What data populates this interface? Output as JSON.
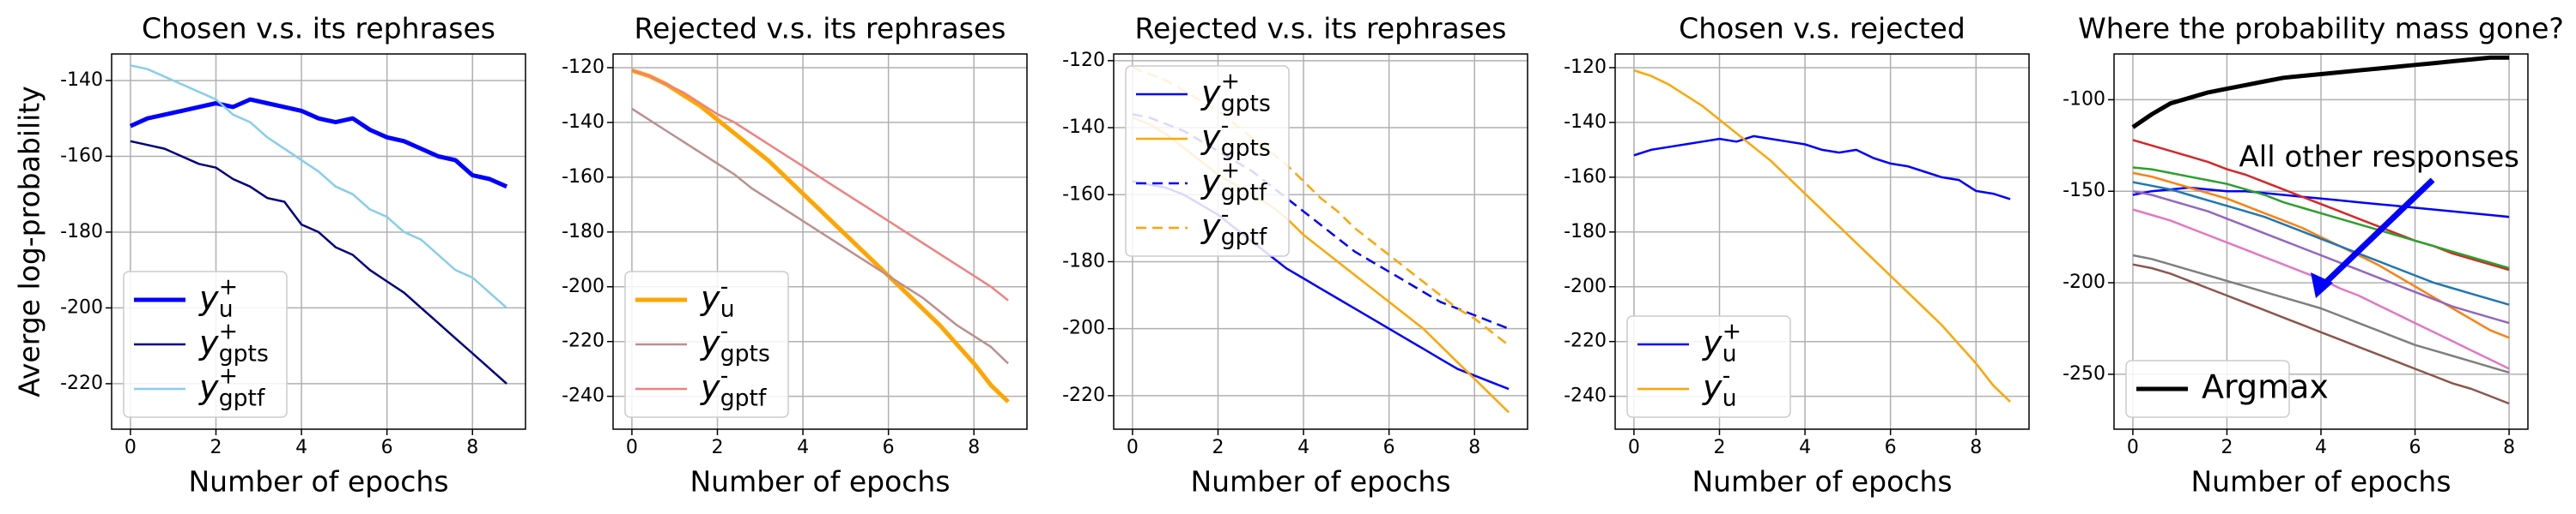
{
  "chart_data": [
    {
      "type": "line",
      "title": "Chosen v.s. its rephrases",
      "xlabel": "Number of epochs",
      "ylabel": "Averge log-probability",
      "x": [
        0,
        0.4,
        0.8,
        1.2,
        1.6,
        2,
        2.4,
        2.8,
        3.2,
        3.6,
        4,
        4.4,
        4.8,
        5.2,
        5.6,
        6,
        6.4,
        6.8,
        7.2,
        7.6,
        8,
        8.4,
        8.8
      ],
      "xlim": [
        -0.44,
        9.24
      ],
      "xticks": [
        0,
        2,
        4,
        6,
        8
      ],
      "ylim": [
        -232,
        -133
      ],
      "yticks": [
        -220,
        -200,
        -180,
        -160,
        -140
      ],
      "grid": true,
      "legend": "lower left",
      "series": [
        {
          "name": "y_u^+",
          "color": "#0000ff",
          "linewidth": 5,
          "values": [
            -152,
            -150,
            -149,
            -148,
            -147,
            -146,
            -147,
            -145,
            -146,
            -147,
            -148,
            -150,
            -151,
            -150,
            -153,
            -155,
            -156,
            -158,
            -160,
            -161,
            -165,
            -166,
            -168
          ]
        },
        {
          "name": "y_gpts^+",
          "color": "#000080",
          "linewidth": 2.5,
          "values": [
            -156,
            -157,
            -158,
            -160,
            -162,
            -163,
            -166,
            -168,
            -171,
            -172,
            -178,
            -180,
            -184,
            -186,
            -190,
            -193,
            -196,
            -200,
            -204,
            -208,
            -212,
            -216,
            -220
          ]
        },
        {
          "name": "y_gptf^+",
          "color": "#87ceeb",
          "linewidth": 2.5,
          "values": [
            -136,
            -137,
            -139,
            -141,
            -143,
            -145,
            -149,
            -151,
            -155,
            -158,
            -161,
            -164,
            -168,
            -170,
            -174,
            -176,
            -180,
            -182,
            -186,
            -190,
            -192,
            -196,
            -200
          ]
        }
      ]
    },
    {
      "type": "line",
      "title": "Rejected v.s. its rephrases",
      "xlabel": "Number of epochs",
      "x": [
        0,
        0.4,
        0.8,
        1.2,
        1.6,
        2,
        2.4,
        2.8,
        3.2,
        3.6,
        4,
        4.4,
        4.8,
        5.2,
        5.6,
        6,
        6.4,
        6.8,
        7.2,
        7.6,
        8,
        8.4,
        8.8
      ],
      "xlim": [
        -0.44,
        9.24
      ],
      "xticks": [
        0,
        2,
        4,
        6,
        8
      ],
      "ylim": [
        -252,
        -115
      ],
      "yticks": [
        -240,
        -220,
        -200,
        -180,
        -160,
        -140,
        -120
      ],
      "grid": true,
      "legend": "lower left",
      "series": [
        {
          "name": "y_u^-",
          "color": "#ffa500",
          "linewidth": 5,
          "values": [
            -121,
            -123,
            -126,
            -130,
            -134,
            -139,
            -144,
            -149,
            -154,
            -160,
            -166,
            -172,
            -178,
            -184,
            -190,
            -196,
            -202,
            -208,
            -214,
            -221,
            -228,
            -236,
            -242
          ]
        },
        {
          "name": "y_gpts^-",
          "color": "#bc8f8f",
          "linewidth": 2.5,
          "values": [
            -135,
            -139,
            -143,
            -147,
            -151,
            -155,
            -159,
            -164,
            -168,
            -172,
            -176,
            -180,
            -184,
            -188,
            -192,
            -196,
            -200,
            -204,
            -209,
            -214,
            -218,
            -222,
            -228
          ]
        },
        {
          "name": "y_gptf^-",
          "color": "#f08080",
          "linewidth": 2.5,
          "values": [
            -121,
            -123,
            -126,
            -129,
            -133,
            -137,
            -140,
            -144,
            -148,
            -152,
            -156,
            -160,
            -164,
            -168,
            -172,
            -176,
            -180,
            -184,
            -188,
            -192,
            -196,
            -200,
            -205
          ]
        }
      ]
    },
    {
      "type": "line",
      "title": "Rejected v.s. its rephrases",
      "xlabel": "Number of epochs",
      "x": [
        0,
        0.4,
        0.8,
        1.2,
        1.6,
        2,
        2.4,
        2.8,
        3.2,
        3.6,
        4,
        4.4,
        4.8,
        5.2,
        5.6,
        6,
        6.4,
        6.8,
        7.2,
        7.6,
        8,
        8.4,
        8.8
      ],
      "xlim": [
        -0.44,
        9.24
      ],
      "xticks": [
        0,
        2,
        4,
        6,
        8
      ],
      "ylim": [
        -230,
        -118
      ],
      "yticks": [
        -220,
        -200,
        -180,
        -160,
        -140,
        -120
      ],
      "grid": true,
      "legend": "upper left",
      "series": [
        {
          "name": "y_gpts^+",
          "color": "#0000ff",
          "linewidth": 2.5,
          "linestyle": "solid",
          "values": [
            -156,
            -157,
            -158,
            -160,
            -163,
            -166,
            -170,
            -174,
            -178,
            -182,
            -185,
            -188,
            -191,
            -194,
            -197,
            -200,
            -203,
            -206,
            -209,
            -212,
            -214,
            -216,
            -218
          ]
        },
        {
          "name": "y_gpts^-",
          "color": "#ffa500",
          "linewidth": 2.5,
          "linestyle": "solid",
          "values": [
            -137,
            -139,
            -142,
            -146,
            -150,
            -154,
            -157,
            -160,
            -163,
            -167,
            -172,
            -176,
            -180,
            -184,
            -188,
            -192,
            -196,
            -200,
            -205,
            -210,
            -215,
            -220,
            -225
          ]
        },
        {
          "name": "y_gptf^+",
          "color": "#0000ff",
          "linewidth": 2.5,
          "linestyle": "dashed",
          "values": [
            -136,
            -137,
            -139,
            -141,
            -144,
            -147,
            -150,
            -153,
            -157,
            -161,
            -165,
            -169,
            -173,
            -177,
            -180,
            -183,
            -186,
            -189,
            -192,
            -194,
            -196,
            -198,
            -200
          ]
        },
        {
          "name": "y_gptf^-",
          "color": "#ffa500",
          "linewidth": 2.5,
          "linestyle": "dashed",
          "values": [
            -122,
            -124,
            -126,
            -129,
            -132,
            -135,
            -139,
            -143,
            -147,
            -151,
            -156,
            -161,
            -165,
            -170,
            -174,
            -178,
            -182,
            -186,
            -190,
            -194,
            -197,
            -201,
            -205
          ]
        }
      ]
    },
    {
      "type": "line",
      "title": "Chosen v.s. rejected",
      "xlabel": "Number of epochs",
      "x": [
        0,
        0.4,
        0.8,
        1.2,
        1.6,
        2,
        2.4,
        2.8,
        3.2,
        3.6,
        4,
        4.4,
        4.8,
        5.2,
        5.6,
        6,
        6.4,
        6.8,
        7.2,
        7.6,
        8,
        8.4,
        8.8
      ],
      "xlim": [
        -0.44,
        9.24
      ],
      "xticks": [
        0,
        2,
        4,
        6,
        8
      ],
      "ylim": [
        -252,
        -115
      ],
      "yticks": [
        -240,
        -220,
        -200,
        -180,
        -160,
        -140,
        -120
      ],
      "grid": true,
      "legend": "lower left",
      "series": [
        {
          "name": "y_u^+",
          "color": "#0000ff",
          "linewidth": 2.5,
          "values": [
            -152,
            -150,
            -149,
            -148,
            -147,
            -146,
            -147,
            -145,
            -146,
            -147,
            -148,
            -150,
            -151,
            -150,
            -153,
            -155,
            -156,
            -158,
            -160,
            -161,
            -165,
            -166,
            -168
          ]
        },
        {
          "name": "y_u^-",
          "color": "#ffa500",
          "linewidth": 2.5,
          "values": [
            -121,
            -123,
            -126,
            -130,
            -134,
            -139,
            -144,
            -149,
            -154,
            -160,
            -166,
            -172,
            -178,
            -184,
            -190,
            -196,
            -202,
            -208,
            -214,
            -221,
            -228,
            -236,
            -242
          ]
        }
      ]
    },
    {
      "type": "line",
      "title": "Where the probability mass gone?",
      "xlabel": "Number of epochs",
      "annotation": "All other responses",
      "annotation_color": "#0000ff",
      "x": [
        0,
        0.4,
        0.8,
        1.2,
        1.6,
        2,
        2.4,
        2.8,
        3.2,
        3.6,
        4,
        4.4,
        4.8,
        5.2,
        5.6,
        6,
        6.4,
        6.8,
        7.2,
        7.6,
        8
      ],
      "xlim": [
        -0.4,
        8.4
      ],
      "xticks": [
        0,
        2,
        4,
        6,
        8
      ],
      "ylim": [
        -280,
        -75
      ],
      "yticks": [
        -250,
        -200,
        -150,
        -100
      ],
      "grid": true,
      "legend": "lower left",
      "series": [
        {
          "name": "Argmax",
          "color": "#000000",
          "linewidth": 5,
          "values": [
            -115,
            -108,
            -102,
            -99,
            -96,
            -94,
            -92,
            -90,
            -88,
            -87,
            -86,
            -85,
            -84,
            -83,
            -82,
            -81,
            -80,
            -79,
            -78,
            -77,
            -77
          ]
        },
        {
          "color": "#0000ff",
          "linewidth": 2.5,
          "values": [
            -152,
            -150,
            -149,
            -148,
            -149,
            -150,
            -150,
            -151,
            -152,
            -153,
            -154,
            -155,
            -156,
            -157,
            -158,
            -159,
            -160,
            -161,
            -162,
            -163,
            -164
          ]
        },
        {
          "color": "#d62728",
          "linewidth": 2.5,
          "values": [
            -122,
            -125,
            -128,
            -131,
            -134,
            -138,
            -141,
            -145,
            -149,
            -153,
            -157,
            -161,
            -165,
            -169,
            -173,
            -177,
            -180,
            -184,
            -187,
            -190,
            -193
          ]
        },
        {
          "color": "#2ca02c",
          "linewidth": 2.5,
          "values": [
            -137,
            -138,
            -140,
            -142,
            -144,
            -146,
            -149,
            -152,
            -156,
            -159,
            -162,
            -165,
            -168,
            -171,
            -174,
            -177,
            -180,
            -183,
            -186,
            -189,
            -192
          ]
        },
        {
          "color": "#ff7f0e",
          "linewidth": 2.5,
          "values": [
            -140,
            -142,
            -145,
            -148,
            -151,
            -154,
            -158,
            -162,
            -166,
            -170,
            -175,
            -180,
            -185,
            -190,
            -196,
            -202,
            -208,
            -214,
            -220,
            -226,
            -230
          ]
        },
        {
          "color": "#1f77b4",
          "linewidth": 2.5,
          "values": [
            -145,
            -147,
            -149,
            -152,
            -155,
            -158,
            -161,
            -164,
            -168,
            -172,
            -176,
            -180,
            -184,
            -188,
            -192,
            -196,
            -200,
            -203,
            -206,
            -209,
            -212
          ]
        },
        {
          "color": "#9467bd",
          "linewidth": 2.5,
          "values": [
            -150,
            -152,
            -155,
            -158,
            -161,
            -165,
            -169,
            -173,
            -177,
            -181,
            -185,
            -189,
            -193,
            -197,
            -201,
            -205,
            -209,
            -213,
            -216,
            -219,
            -222
          ]
        },
        {
          "color": "#e377c2",
          "linewidth": 2.5,
          "values": [
            -160,
            -163,
            -166,
            -170,
            -174,
            -178,
            -182,
            -186,
            -190,
            -194,
            -198,
            -203,
            -207,
            -212,
            -217,
            -222,
            -227,
            -232,
            -237,
            -242,
            -247
          ]
        },
        {
          "color": "#7f7f7f",
          "linewidth": 2.5,
          "values": [
            -185,
            -187,
            -190,
            -193,
            -196,
            -199,
            -202,
            -205,
            -208,
            -211,
            -214,
            -218,
            -222,
            -226,
            -230,
            -234,
            -237,
            -240,
            -243,
            -246,
            -249
          ]
        },
        {
          "color": "#8c564b",
          "linewidth": 2.5,
          "values": [
            -190,
            -192,
            -195,
            -199,
            -203,
            -207,
            -211,
            -215,
            -219,
            -223,
            -227,
            -231,
            -235,
            -239,
            -243,
            -247,
            -251,
            -255,
            -258,
            -262,
            -266
          ]
        }
      ]
    }
  ]
}
